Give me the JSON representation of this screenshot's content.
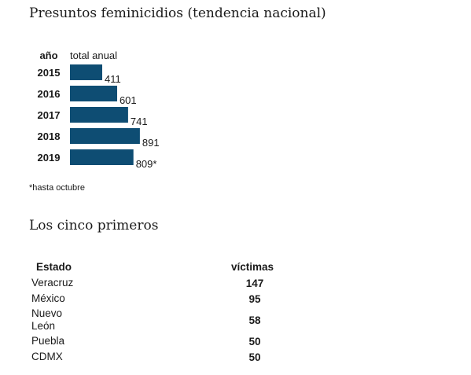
{
  "chart_data": {
    "type": "bar",
    "orientation": "horizontal",
    "title": "Presuntos feminicidios (tendencia nacional)",
    "category_header": "año",
    "value_header": "total anual",
    "categories": [
      "2015",
      "2016",
      "2017",
      "2018",
      "2019"
    ],
    "values": [
      411,
      601,
      741,
      891,
      809
    ],
    "value_labels": [
      "411",
      "601",
      "741",
      "891",
      "809*"
    ],
    "bar_color": "#0e4d73",
    "footnote": "*hasta octubre"
  },
  "table": {
    "title": "Los cinco primeros",
    "headers": [
      "Estado",
      "víctimas"
    ],
    "rows": [
      {
        "state": "Veracruz",
        "victims": "147"
      },
      {
        "state": "México",
        "victims": "95"
      },
      {
        "state": "Nuevo León",
        "victims": "58"
      },
      {
        "state": "Puebla",
        "victims": "50"
      },
      {
        "state": "CDMX",
        "victims": "50"
      }
    ]
  }
}
